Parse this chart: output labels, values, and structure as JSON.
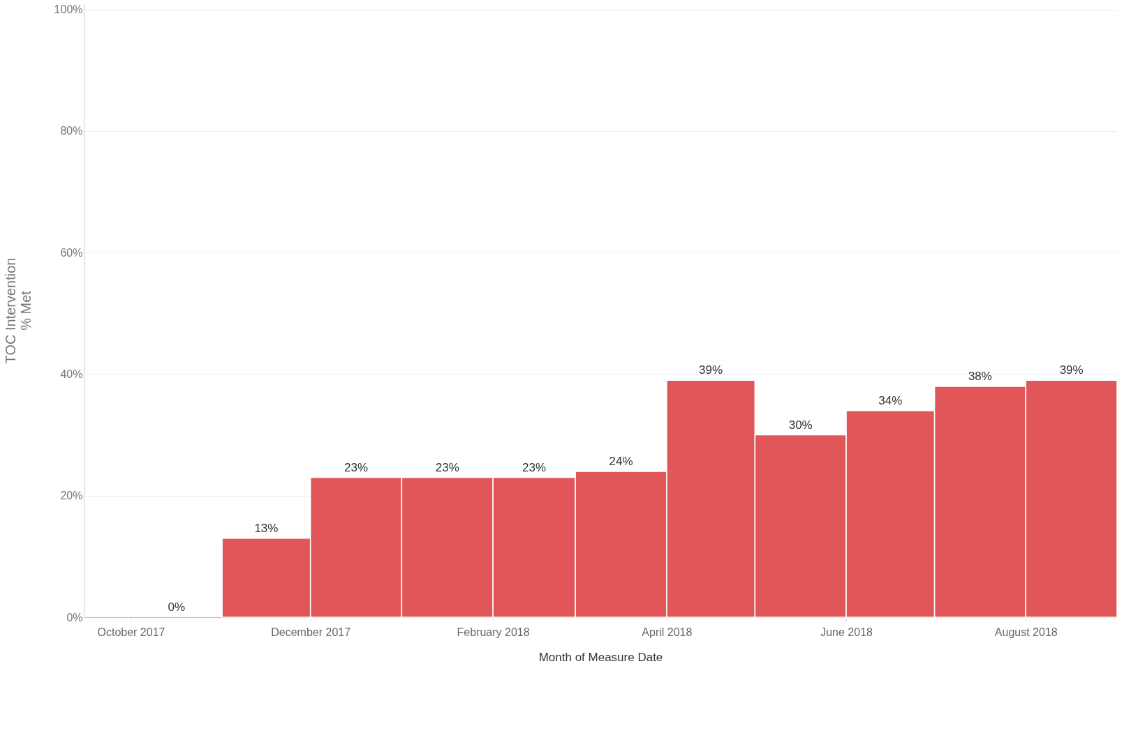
{
  "chart_data": {
    "type": "bar",
    "xlabel": "Month of Measure Date",
    "ylabel": [
      "TOC Intervention",
      "% Met"
    ],
    "x": [
      "2017-10-16",
      "2017-11-15",
      "2017-12-16",
      "2018-01-16",
      "2018-02-14",
      "2018-03-16",
      "2018-04-15",
      "2018-05-16",
      "2018-06-15",
      "2018-07-16",
      "2018-08-16"
    ],
    "series": [
      {
        "color": "#e15759",
        "values": [
          0,
          13,
          23,
          23,
          23,
          24,
          39,
          30,
          34,
          38,
          39
        ],
        "value_labels": [
          "0%",
          "13%",
          "23%",
          "23%",
          "23%",
          "24%",
          "39%",
          "30%",
          "34%",
          "38%",
          "39%"
        ]
      }
    ],
    "xlim": [
      "2017-09-15",
      "2018-09-01"
    ],
    "xticks": [
      {
        "value": "2017-10",
        "label": "October 2017"
      },
      {
        "value": "2017-12",
        "label": "December 2017"
      },
      {
        "value": "2018-02",
        "label": "February 2018"
      },
      {
        "value": "2018-04",
        "label": "April 2018"
      },
      {
        "value": "2018-06",
        "label": "June 2018"
      },
      {
        "value": "2018-08",
        "label": "August 2018"
      }
    ],
    "ylim": [
      0,
      101
    ],
    "yticks": [
      {
        "value": 0,
        "label": "0%"
      },
      {
        "value": 20,
        "label": "20%"
      },
      {
        "value": 40,
        "label": "40%"
      },
      {
        "value": 60,
        "label": "60%"
      },
      {
        "value": 80,
        "label": "80%"
      },
      {
        "value": 100,
        "label": "100%"
      }
    ],
    "grid": "y"
  }
}
